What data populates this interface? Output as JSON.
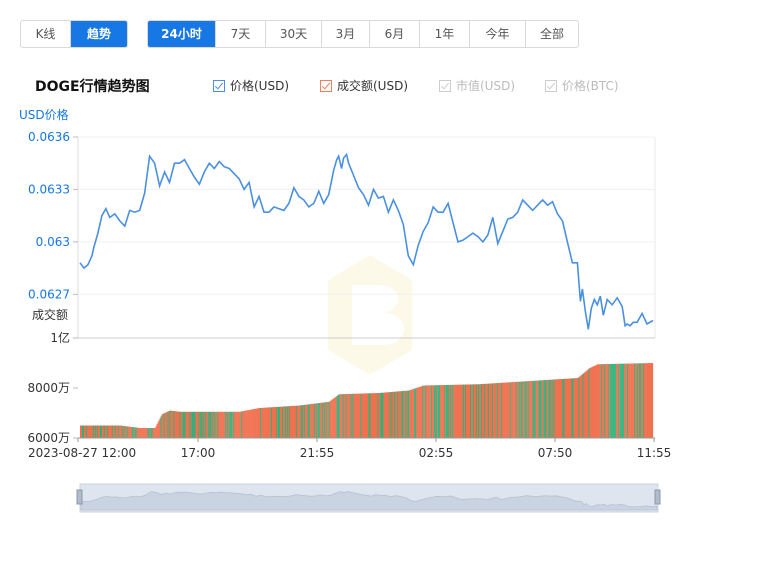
{
  "ranges": {
    "mode_tabs": [
      {
        "label": "K线",
        "active": false
      },
      {
        "label": "趋势",
        "active": true
      }
    ],
    "period_tabs": [
      {
        "label": "24小时",
        "active": true
      },
      {
        "label": "7天",
        "active": false
      },
      {
        "label": "30天",
        "active": false
      },
      {
        "label": "3月",
        "active": false
      },
      {
        "label": "6月",
        "active": false
      },
      {
        "label": "1年",
        "active": false
      },
      {
        "label": "今年",
        "active": false
      },
      {
        "label": "全部",
        "active": false
      }
    ]
  },
  "header": {
    "title": "DOGE行情趋势图"
  },
  "legend": [
    {
      "label": "价格(USD)",
      "checked": true,
      "color": "#4a90e2"
    },
    {
      "label": "成交额(USD)",
      "checked": true,
      "color": "#f27d5a"
    },
    {
      "label": "市值(USD)",
      "checked": true,
      "color": "#cccccc"
    },
    {
      "label": "价格(BTC)",
      "checked": true,
      "color": "#cccccc"
    }
  ],
  "colors": {
    "price_line": "#4a90e2",
    "vol_up": "#f0704f",
    "vol_down": "#2db37d",
    "accent": "#1677e5"
  },
  "chart_data": {
    "type": "line",
    "price_axis": {
      "label": "USD价格",
      "ticks": [
        "0.0636",
        "0.0633",
        "0.063",
        "0.0627"
      ],
      "range": [
        0.06245,
        0.0636
      ]
    },
    "volume_axis": {
      "label": "成交额",
      "ticks": [
        "1亿",
        "8000万",
        "6000万"
      ],
      "range": [
        60000000,
        100000000
      ]
    },
    "x_labels": [
      "2023-08-27 12:00",
      "17:00",
      "21:55",
      "02:55",
      "07:50",
      "11:55"
    ],
    "price_anchors": [
      [
        0,
        0.06288
      ],
      [
        4,
        0.06285
      ],
      [
        8,
        0.06287
      ],
      [
        12,
        0.06292
      ],
      [
        14,
        0.06297
      ],
      [
        16,
        0.06301
      ],
      [
        18,
        0.06305
      ],
      [
        22,
        0.06315
      ],
      [
        26,
        0.06319
      ],
      [
        30,
        0.06314
      ],
      [
        35,
        0.06316
      ],
      [
        40,
        0.06312
      ],
      [
        45,
        0.06309
      ],
      [
        50,
        0.06318
      ],
      [
        55,
        0.06317
      ],
      [
        60,
        0.06318
      ],
      [
        65,
        0.06328
      ],
      [
        70,
        0.06349
      ],
      [
        75,
        0.06345
      ],
      [
        80,
        0.06332
      ],
      [
        85,
        0.0634
      ],
      [
        90,
        0.06334
      ],
      [
        95,
        0.06345
      ],
      [
        100,
        0.06345
      ],
      [
        105,
        0.06347
      ],
      [
        110,
        0.06342
      ],
      [
        115,
        0.06337
      ],
      [
        120,
        0.06333
      ],
      [
        125,
        0.0634
      ],
      [
        130,
        0.06345
      ],
      [
        135,
        0.06342
      ],
      [
        140,
        0.06346
      ],
      [
        145,
        0.06343
      ],
      [
        150,
        0.06342
      ],
      [
        155,
        0.06339
      ],
      [
        160,
        0.06336
      ],
      [
        165,
        0.0633
      ],
      [
        170,
        0.06334
      ],
      [
        175,
        0.0632
      ],
      [
        180,
        0.06326
      ],
      [
        185,
        0.06317
      ],
      [
        190,
        0.06317
      ],
      [
        195,
        0.0632
      ],
      [
        200,
        0.06319
      ],
      [
        205,
        0.06318
      ],
      [
        210,
        0.06322
      ],
      [
        215,
        0.06331
      ],
      [
        220,
        0.06326
      ],
      [
        225,
        0.06324
      ],
      [
        230,
        0.0632
      ],
      [
        235,
        0.06322
      ],
      [
        240,
        0.06329
      ],
      [
        245,
        0.06322
      ],
      [
        250,
        0.06327
      ],
      [
        255,
        0.06341
      ],
      [
        258,
        0.06347
      ],
      [
        260,
        0.06349
      ],
      [
        263,
        0.06342
      ],
      [
        265,
        0.06348
      ],
      [
        268,
        0.0635
      ],
      [
        270,
        0.06345
      ],
      [
        275,
        0.06338
      ],
      [
        280,
        0.06331
      ],
      [
        285,
        0.06327
      ],
      [
        290,
        0.06321
      ],
      [
        295,
        0.0633
      ],
      [
        300,
        0.06325
      ],
      [
        305,
        0.06326
      ],
      [
        310,
        0.06317
      ],
      [
        315,
        0.06324
      ],
      [
        320,
        0.06318
      ],
      [
        325,
        0.0631
      ],
      [
        330,
        0.06292
      ],
      [
        335,
        0.06287
      ],
      [
        340,
        0.06298
      ],
      [
        345,
        0.06306
      ],
      [
        350,
        0.06311
      ],
      [
        355,
        0.0632
      ],
      [
        360,
        0.06317
      ],
      [
        365,
        0.06317
      ],
      [
        370,
        0.06322
      ],
      [
        375,
        0.06311
      ],
      [
        380,
        0.063
      ],
      [
        385,
        0.06301
      ],
      [
        390,
        0.06303
      ],
      [
        395,
        0.06305
      ],
      [
        400,
        0.06303
      ],
      [
        405,
        0.063
      ],
      [
        410,
        0.06304
      ],
      [
        415,
        0.06314
      ],
      [
        420,
        0.06299
      ],
      [
        425,
        0.06306
      ],
      [
        430,
        0.06313
      ],
      [
        435,
        0.06314
      ],
      [
        440,
        0.06317
      ],
      [
        445,
        0.06324
      ],
      [
        450,
        0.06321
      ],
      [
        455,
        0.06318
      ],
      [
        460,
        0.06321
      ],
      [
        465,
        0.06324
      ],
      [
        470,
        0.06321
      ],
      [
        475,
        0.06323
      ],
      [
        480,
        0.06316
      ],
      [
        485,
        0.06312
      ],
      [
        490,
        0.063
      ],
      [
        495,
        0.06288
      ],
      [
        500,
        0.06288
      ],
      [
        503,
        0.06266
      ],
      [
        505,
        0.06273
      ],
      [
        508,
        0.0626
      ],
      [
        511,
        0.0625
      ],
      [
        514,
        0.06262
      ],
      [
        517,
        0.06267
      ],
      [
        520,
        0.06264
      ],
      [
        523,
        0.06269
      ],
      [
        526,
        0.06258
      ],
      [
        530,
        0.06267
      ],
      [
        535,
        0.06264
      ],
      [
        540,
        0.06268
      ],
      [
        545,
        0.06263
      ],
      [
        548,
        0.06252
      ],
      [
        550,
        0.06253
      ],
      [
        553,
        0.06252
      ],
      [
        556,
        0.06254
      ],
      [
        560,
        0.06254
      ],
      [
        565,
        0.06259
      ],
      [
        570,
        0.06253
      ],
      [
        576,
        0.06255
      ]
    ],
    "volume_anchors": [
      [
        0,
        6500
      ],
      [
        40,
        6500
      ],
      [
        60,
        6400
      ],
      [
        75,
        6400
      ],
      [
        82,
        6950
      ],
      [
        90,
        7100
      ],
      [
        100,
        7050
      ],
      [
        120,
        7050
      ],
      [
        160,
        7050
      ],
      [
        180,
        7200
      ],
      [
        220,
        7300
      ],
      [
        250,
        7450
      ],
      [
        260,
        7750
      ],
      [
        300,
        7800
      ],
      [
        330,
        7900
      ],
      [
        345,
        8100
      ],
      [
        400,
        8150
      ],
      [
        460,
        8300
      ],
      [
        500,
        8400
      ],
      [
        512,
        8800
      ],
      [
        520,
        8950
      ],
      [
        576,
        9000
      ]
    ]
  }
}
